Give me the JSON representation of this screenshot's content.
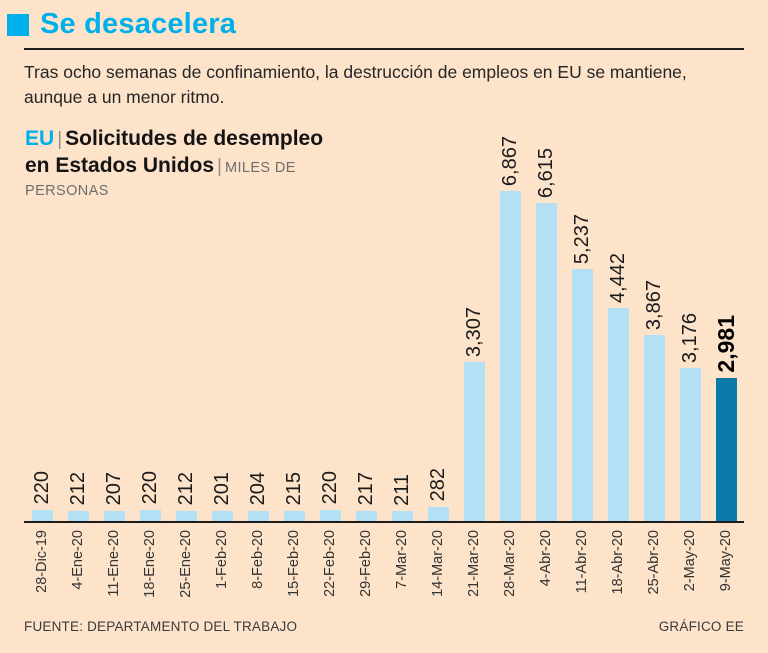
{
  "page": {
    "title": "Se desacelera",
    "intro": "Tras ocho semanas de confinamiento, la destrucción de empleos en EU se mantiene, aunque a un menor ritmo.",
    "footer_left": "FUENTE: DEPARTAMENTO DEL TRABAJO",
    "footer_right": "GRÁFICO EE"
  },
  "chart_title": {
    "region": "EU",
    "sep": "|",
    "main_1": "Solicitudes de desempleo",
    "main_2": "en Estados Unidos",
    "unit_1": "MILES DE",
    "unit_2": "PERSONAS"
  },
  "chart_data": {
    "type": "bar",
    "title": "EU | Solicitudes de desempleo en Estados Unidos | Miles de personas",
    "xlabel": "",
    "ylabel": "Miles de personas",
    "ylim": [
      0,
      6867
    ],
    "grid": false,
    "y_axis_visible": false,
    "legend": false,
    "categories": [
      "28-Dic-19",
      "4-Ene-20",
      "11-Ene-20",
      "18-Ene-20",
      "25-Ene-20",
      "1-Feb-20",
      "8-Feb-20",
      "15-Feb-20",
      "22-Feb-20",
      "29-Feb-20",
      "7-Mar-20",
      "14-Mar-20",
      "21-Mar-20",
      "28-Mar-20",
      "4-Abr-20",
      "11-Abr-20",
      "18-Abr-20",
      "25-Abr-20",
      "2-May-20",
      "9-May-20"
    ],
    "values": [
      220,
      212,
      207,
      220,
      212,
      201,
      204,
      215,
      220,
      217,
      211,
      282,
      3307,
      6867,
      6615,
      5237,
      4442,
      3867,
      3176,
      2981
    ],
    "value_labels": [
      "220",
      "212",
      "207",
      "220",
      "212",
      "201",
      "204",
      "215",
      "220",
      "217",
      "211",
      "282",
      "3,307",
      "6,867",
      "6,615",
      "5,237",
      "4,442",
      "3,867",
      "3,176",
      "2,981"
    ],
    "highlight_index": 19,
    "colors": {
      "bar": "#b5dff4",
      "highlight": "#0a7ba8",
      "accent": "#00b0eb"
    }
  }
}
